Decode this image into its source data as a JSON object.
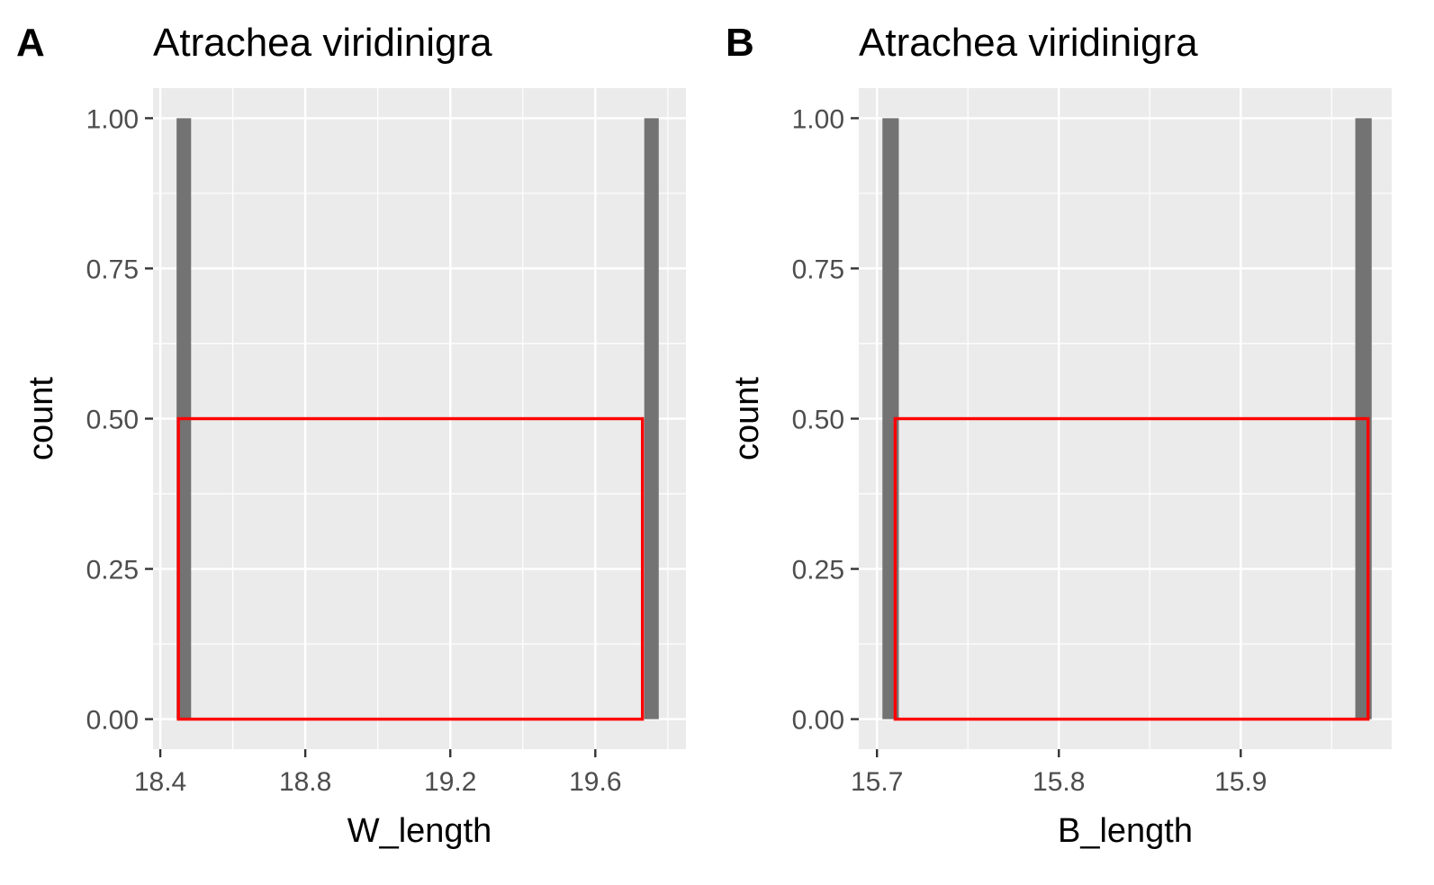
{
  "chart_data": [
    {
      "type": "bar",
      "panel": "A",
      "title": "Atrachea viridinigra",
      "xlabel": "W_length",
      "ylabel": "count",
      "xlim": [
        18.38,
        19.85
      ],
      "ylim": [
        -0.05,
        1.05
      ],
      "x_ticks": [
        18.4,
        18.8,
        19.2,
        19.6
      ],
      "x_tick_labels": [
        "18.4",
        "18.8",
        "19.2",
        "19.6"
      ],
      "y_ticks": [
        0,
        0.25,
        0.5,
        0.75,
        1.0
      ],
      "y_tick_labels": [
        "0.00",
        "0.25",
        "0.50",
        "0.75",
        "1.00"
      ],
      "bars": [
        {
          "x_start": 18.445,
          "x_end": 18.485,
          "count": 1
        },
        {
          "x_start": 19.735,
          "x_end": 19.775,
          "count": 1
        }
      ],
      "density_rect": {
        "x_start": 18.45,
        "x_end": 19.73,
        "height": 0.5
      },
      "grid": true,
      "colors": {
        "panel_bg": "#ebebeb",
        "grid": "#ffffff",
        "bar": "#737373",
        "outline": "#ff0000"
      }
    },
    {
      "type": "bar",
      "panel": "B",
      "title": "Atrachea viridinigra",
      "xlabel": "B_length",
      "ylabel": "count",
      "xlim": [
        15.69,
        15.983
      ],
      "ylim": [
        -0.05,
        1.05
      ],
      "x_ticks": [
        15.7,
        15.8,
        15.9
      ],
      "x_tick_labels": [
        "15.7",
        "15.8",
        "15.9"
      ],
      "y_ticks": [
        0,
        0.25,
        0.5,
        0.75,
        1.0
      ],
      "y_tick_labels": [
        "0.00",
        "0.25",
        "0.50",
        "0.75",
        "1.00"
      ],
      "bars": [
        {
          "x_start": 15.703,
          "x_end": 15.712,
          "count": 1
        },
        {
          "x_start": 15.963,
          "x_end": 15.972,
          "count": 1
        }
      ],
      "density_rect": {
        "x_start": 15.71,
        "x_end": 15.97,
        "height": 0.5
      },
      "grid": true,
      "colors": {
        "panel_bg": "#ebebeb",
        "grid": "#ffffff",
        "bar": "#737373",
        "outline": "#ff0000"
      }
    }
  ]
}
